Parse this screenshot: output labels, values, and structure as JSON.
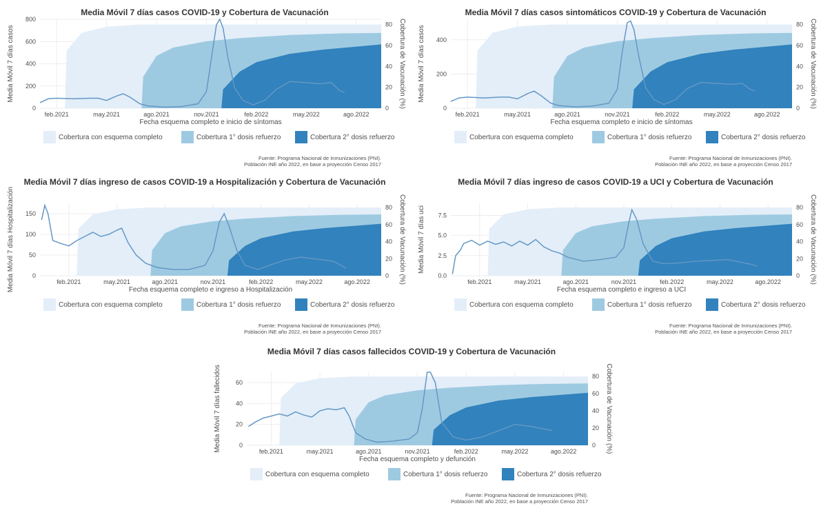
{
  "colors": {
    "cov_complete": "#e3eef9",
    "cov_booster1": "#9ecae1",
    "cov_booster2": "#3182bd",
    "case_line": "#6497c4",
    "grid": "#e6e6e6"
  },
  "legend": {
    "complete": "Cobertura con esquema completo",
    "booster1": "Cobertura 1° dosis refuerzo",
    "booster2": "Cobertura 2° dosis refuerzo"
  },
  "source": {
    "line1": "Fuente: Programa Nacional de Inmunizaciones (PNI).",
    "line2": "Población INE año 2022, en base a proyección Censo 2017"
  },
  "y2_label": "Cobertura de Vacunación (%)",
  "chart_data": [
    {
      "id": "casos",
      "type": "area",
      "title": "Media Móvil 7 días casos COVID-19 y Cobertura de Vacunación",
      "xlabel": "Fecha esquema completo e inicio de síntomas",
      "ylabel": "Media Móvil 7 días casos",
      "ylim": [
        0,
        800
      ],
      "yticks": [
        0,
        200,
        400,
        600,
        800
      ],
      "y2lim": [
        0,
        85
      ],
      "y2ticks": [
        0,
        20,
        40,
        60,
        80
      ],
      "xticks": [
        "feb.2021",
        "may.2021",
        "ago.2021",
        "nov.2021",
        "feb.2022",
        "may.2022",
        "ago.2022"
      ],
      "x_range_months": [
        0,
        20.5
      ],
      "coverage": {
        "complete": [
          [
            1.5,
            0
          ],
          [
            1.6,
            55
          ],
          [
            2.5,
            72
          ],
          [
            4,
            78
          ],
          [
            6,
            80
          ],
          [
            8,
            80
          ],
          [
            12,
            80
          ],
          [
            20.5,
            80
          ]
        ],
        "booster1": [
          [
            6.1,
            0
          ],
          [
            6.2,
            30
          ],
          [
            7,
            50
          ],
          [
            8,
            58
          ],
          [
            10,
            64
          ],
          [
            12,
            67
          ],
          [
            15,
            70
          ],
          [
            18,
            71.5
          ],
          [
            20.5,
            72
          ]
        ],
        "booster2": [
          [
            10.9,
            0
          ],
          [
            11,
            18
          ],
          [
            12,
            35
          ],
          [
            13,
            44
          ],
          [
            15,
            52
          ],
          [
            17,
            56
          ],
          [
            20.5,
            61
          ]
        ]
      },
      "cases": [
        [
          0,
          50
        ],
        [
          0.5,
          85
        ],
        [
          1,
          90
        ],
        [
          2,
          85
        ],
        [
          3,
          90
        ],
        [
          3.5,
          90
        ],
        [
          4,
          70
        ],
        [
          4.6,
          110
        ],
        [
          5,
          130
        ],
        [
          5.4,
          100
        ],
        [
          6,
          40
        ],
        [
          6.5,
          20
        ],
        [
          7.5,
          10
        ],
        [
          8.5,
          15
        ],
        [
          9.5,
          40
        ],
        [
          10,
          150
        ],
        [
          10.3,
          450
        ],
        [
          10.6,
          750
        ],
        [
          10.8,
          810
        ],
        [
          11,
          720
        ],
        [
          11.3,
          450
        ],
        [
          11.7,
          180
        ],
        [
          12.2,
          70
        ],
        [
          12.8,
          30
        ],
        [
          13.5,
          70
        ],
        [
          14.2,
          170
        ],
        [
          15,
          240
        ],
        [
          16,
          230
        ],
        [
          16.8,
          220
        ],
        [
          17.5,
          230
        ],
        [
          18,
          160
        ],
        [
          18.3,
          140
        ]
      ]
    },
    {
      "id": "sintomaticos",
      "type": "area",
      "title": "Media Móvil 7 días casos sintomáticos COVID-19 y Cobertura de Vacunación",
      "xlabel": "Fecha esquema completo e inicio de síntomas",
      "ylabel": "Media Móvil 7 días casos",
      "ylim": [
        0,
        520
      ],
      "yticks": [
        0,
        200,
        400
      ],
      "y2lim": [
        0,
        85
      ],
      "y2ticks": [
        0,
        20,
        40,
        60,
        80
      ],
      "xticks": [
        "feb.2021",
        "may.2021",
        "ago.2021",
        "nov.2021",
        "feb.2022",
        "may.2022",
        "ago.2022"
      ],
      "x_range_months": [
        0,
        20.5
      ],
      "coverage": {
        "complete": [
          [
            1.5,
            0
          ],
          [
            1.6,
            55
          ],
          [
            2.5,
            72
          ],
          [
            4,
            78
          ],
          [
            6,
            80
          ],
          [
            8,
            80
          ],
          [
            12,
            80
          ],
          [
            20.5,
            80
          ]
        ],
        "booster1": [
          [
            6.1,
            0
          ],
          [
            6.2,
            30
          ],
          [
            7,
            50
          ],
          [
            8,
            58
          ],
          [
            10,
            64
          ],
          [
            12,
            67
          ],
          [
            15,
            70
          ],
          [
            18,
            71.5
          ],
          [
            20.5,
            72
          ]
        ],
        "booster2": [
          [
            10.9,
            0
          ],
          [
            11,
            18
          ],
          [
            12,
            35
          ],
          [
            13,
            44
          ],
          [
            15,
            52
          ],
          [
            17,
            56
          ],
          [
            20.5,
            61
          ]
        ]
      },
      "cases": [
        [
          0,
          40
        ],
        [
          0.5,
          60
        ],
        [
          1,
          65
        ],
        [
          2,
          60
        ],
        [
          3,
          65
        ],
        [
          3.5,
          65
        ],
        [
          4,
          55
        ],
        [
          4.6,
          85
        ],
        [
          5,
          100
        ],
        [
          5.4,
          75
        ],
        [
          6,
          30
        ],
        [
          6.5,
          15
        ],
        [
          7.5,
          8
        ],
        [
          8.5,
          12
        ],
        [
          9.5,
          30
        ],
        [
          10,
          110
        ],
        [
          10.3,
          330
        ],
        [
          10.6,
          500
        ],
        [
          10.8,
          510
        ],
        [
          11,
          460
        ],
        [
          11.3,
          300
        ],
        [
          11.7,
          120
        ],
        [
          12.2,
          50
        ],
        [
          12.8,
          22
        ],
        [
          13.5,
          50
        ],
        [
          14.2,
          115
        ],
        [
          15,
          150
        ],
        [
          16,
          145
        ],
        [
          16.8,
          140
        ],
        [
          17.5,
          145
        ],
        [
          18,
          110
        ],
        [
          18.3,
          100
        ]
      ]
    },
    {
      "id": "hospitalizacion",
      "type": "area",
      "title": "Media Móvil 7 días ingreso de casos COVID-19 a Hospitalización y Cobertura de Vacunación",
      "xlabel": "Fecha esquema completo e ingreso a Hospitalización",
      "ylabel": "Media Móvil 7 días Hospitalización",
      "ylim": [
        0,
        175
      ],
      "yticks": [
        0,
        50,
        100,
        150
      ],
      "y2lim": [
        0,
        85
      ],
      "y2ticks": [
        0,
        20,
        40,
        60,
        80
      ],
      "xticks": [
        "feb.2021",
        "may.2021",
        "ago.2021",
        "nov.2021",
        "feb.2022",
        "may.2022",
        "ago.2022"
      ],
      "x_range_months": [
        -0.8,
        20.5
      ],
      "coverage": {
        "complete": [
          [
            1.5,
            0
          ],
          [
            1.6,
            55
          ],
          [
            2.5,
            72
          ],
          [
            4,
            78
          ],
          [
            6,
            80
          ],
          [
            8,
            80
          ],
          [
            12,
            80
          ],
          [
            20.5,
            80
          ]
        ],
        "booster1": [
          [
            6.1,
            0
          ],
          [
            6.2,
            30
          ],
          [
            7,
            50
          ],
          [
            8,
            58
          ],
          [
            10,
            64
          ],
          [
            12,
            67
          ],
          [
            15,
            70
          ],
          [
            18,
            71.5
          ],
          [
            20.5,
            72
          ]
        ],
        "booster2": [
          [
            10.9,
            0
          ],
          [
            11,
            18
          ],
          [
            12,
            35
          ],
          [
            13,
            44
          ],
          [
            15,
            52
          ],
          [
            17,
            56
          ],
          [
            20.5,
            61
          ]
        ]
      },
      "cases": [
        [
          -0.7,
          135
        ],
        [
          -0.5,
          170
        ],
        [
          -0.3,
          150
        ],
        [
          0,
          85
        ],
        [
          0.5,
          78
        ],
        [
          1,
          72
        ],
        [
          1.5,
          85
        ],
        [
          2,
          95
        ],
        [
          2.5,
          105
        ],
        [
          3,
          95
        ],
        [
          3.5,
          100
        ],
        [
          4,
          110
        ],
        [
          4.3,
          115
        ],
        [
          4.7,
          80
        ],
        [
          5.2,
          50
        ],
        [
          5.8,
          30
        ],
        [
          6.5,
          20
        ],
        [
          7.5,
          15
        ],
        [
          8.5,
          15
        ],
        [
          9.5,
          25
        ],
        [
          10,
          60
        ],
        [
          10.4,
          130
        ],
        [
          10.7,
          150
        ],
        [
          11,
          120
        ],
        [
          11.5,
          60
        ],
        [
          12,
          25
        ],
        [
          12.8,
          15
        ],
        [
          13.5,
          25
        ],
        [
          14.5,
          38
        ],
        [
          15.5,
          45
        ],
        [
          16.5,
          40
        ],
        [
          17.5,
          35
        ],
        [
          18,
          25
        ],
        [
          18.3,
          18
        ]
      ]
    },
    {
      "id": "uci",
      "type": "area",
      "title": "Media Móvil 7 días ingreso de casos COVID-19 a UCI y Cobertura de Vacunación",
      "xlabel": "Fecha esquema completo e ingreso a UCI",
      "ylabel": "Media Móvil 7 días uci",
      "ylim": [
        0,
        9
      ],
      "yticks": [
        0.0,
        2.5,
        5.0,
        7.5
      ],
      "y2lim": [
        0,
        85
      ],
      "y2ticks": [
        0,
        20,
        40,
        60,
        80
      ],
      "xticks": [
        "feb.2021",
        "may.2021",
        "ago.2021",
        "nov.2021",
        "feb.2022",
        "may.2022",
        "ago.2022"
      ],
      "x_range_months": [
        -0.8,
        20.5
      ],
      "coverage": {
        "complete": [
          [
            1.5,
            0
          ],
          [
            1.6,
            55
          ],
          [
            2.5,
            72
          ],
          [
            4,
            78
          ],
          [
            6,
            80
          ],
          [
            8,
            80
          ],
          [
            12,
            80
          ],
          [
            20.5,
            80
          ]
        ],
        "booster1": [
          [
            6.1,
            0
          ],
          [
            6.2,
            30
          ],
          [
            7,
            50
          ],
          [
            8,
            58
          ],
          [
            10,
            64
          ],
          [
            12,
            67
          ],
          [
            15,
            70
          ],
          [
            18,
            71.5
          ],
          [
            20.5,
            72
          ]
        ],
        "booster2": [
          [
            10.9,
            0
          ],
          [
            11,
            18
          ],
          [
            12,
            35
          ],
          [
            13,
            44
          ],
          [
            15,
            52
          ],
          [
            17,
            56
          ],
          [
            20.5,
            61
          ]
        ]
      },
      "cases": [
        [
          -0.7,
          0.2
        ],
        [
          -0.5,
          2.5
        ],
        [
          -0.2,
          3.2
        ],
        [
          0,
          4.0
        ],
        [
          0.5,
          4.4
        ],
        [
          1,
          3.8
        ],
        [
          1.5,
          4.3
        ],
        [
          2,
          3.9
        ],
        [
          2.5,
          4.2
        ],
        [
          3,
          3.7
        ],
        [
          3.5,
          4.3
        ],
        [
          4,
          3.8
        ],
        [
          4.5,
          4.5
        ],
        [
          5,
          3.6
        ],
        [
          5.5,
          3.1
        ],
        [
          6,
          2.8
        ],
        [
          6.5,
          2.3
        ],
        [
          7.5,
          1.8
        ],
        [
          8.5,
          2.0
        ],
        [
          9.5,
          2.3
        ],
        [
          10,
          3.5
        ],
        [
          10.3,
          6.5
        ],
        [
          10.5,
          8.2
        ],
        [
          10.8,
          7.0
        ],
        [
          11.2,
          4.0
        ],
        [
          11.8,
          1.8
        ],
        [
          12.5,
          1.5
        ],
        [
          13.5,
          1.6
        ],
        [
          14.5,
          1.8
        ],
        [
          15.5,
          1.9
        ],
        [
          16.5,
          2.0
        ],
        [
          17.5,
          1.6
        ],
        [
          18,
          1.4
        ],
        [
          18.3,
          1.2
        ]
      ]
    },
    {
      "id": "fallecidos",
      "type": "area",
      "title": "Media Móvil 7 días casos fallecidos COVID-19 y Cobertura de Vacunación",
      "xlabel": "Fecha esquema completo y defunción",
      "ylabel": "Media Móvil 7 días fallecidos",
      "ylim": [
        0,
        70
      ],
      "yticks": [
        0,
        20,
        40,
        60
      ],
      "y2lim": [
        0,
        85
      ],
      "y2ticks": [
        0,
        20,
        40,
        60,
        80
      ],
      "xticks": [
        "feb.2021",
        "may.2021",
        "ago.2021",
        "nov.2021",
        "feb.2022",
        "may.2022",
        "ago.2022"
      ],
      "x_range_months": [
        -0.5,
        20.5
      ],
      "coverage": {
        "complete": [
          [
            1.5,
            0
          ],
          [
            1.6,
            55
          ],
          [
            2.5,
            72
          ],
          [
            4,
            78
          ],
          [
            6,
            80
          ],
          [
            8,
            80
          ],
          [
            12,
            80
          ],
          [
            20.5,
            80
          ]
        ],
        "booster1": [
          [
            6.1,
            0
          ],
          [
            6.2,
            30
          ],
          [
            7,
            50
          ],
          [
            8,
            58
          ],
          [
            10,
            64
          ],
          [
            12,
            67
          ],
          [
            15,
            70
          ],
          [
            18,
            71.5
          ],
          [
            20.5,
            72
          ]
        ],
        "booster2": [
          [
            10.9,
            0
          ],
          [
            11,
            18
          ],
          [
            12,
            35
          ],
          [
            13,
            44
          ],
          [
            15,
            52
          ],
          [
            17,
            56
          ],
          [
            20.5,
            61
          ]
        ]
      },
      "cases": [
        [
          -0.4,
          18
        ],
        [
          0,
          22
        ],
        [
          0.5,
          26
        ],
        [
          1,
          28
        ],
        [
          1.5,
          30
        ],
        [
          2,
          28
        ],
        [
          2.5,
          32
        ],
        [
          3,
          29
        ],
        [
          3.5,
          27
        ],
        [
          4,
          33
        ],
        [
          4.5,
          35
        ],
        [
          5,
          34
        ],
        [
          5.5,
          36
        ],
        [
          5.8,
          28
        ],
        [
          6.2,
          12
        ],
        [
          6.8,
          6
        ],
        [
          7.5,
          3
        ],
        [
          8.5,
          4
        ],
        [
          9.5,
          6
        ],
        [
          10,
          12
        ],
        [
          10.3,
          35
        ],
        [
          10.6,
          75
        ],
        [
          10.8,
          80
        ],
        [
          11.1,
          60
        ],
        [
          11.5,
          22
        ],
        [
          12.2,
          8
        ],
        [
          13,
          5
        ],
        [
          14,
          8
        ],
        [
          15,
          14
        ],
        [
          16,
          20
        ],
        [
          17,
          18
        ],
        [
          18,
          15
        ],
        [
          18.3,
          14
        ]
      ]
    }
  ]
}
